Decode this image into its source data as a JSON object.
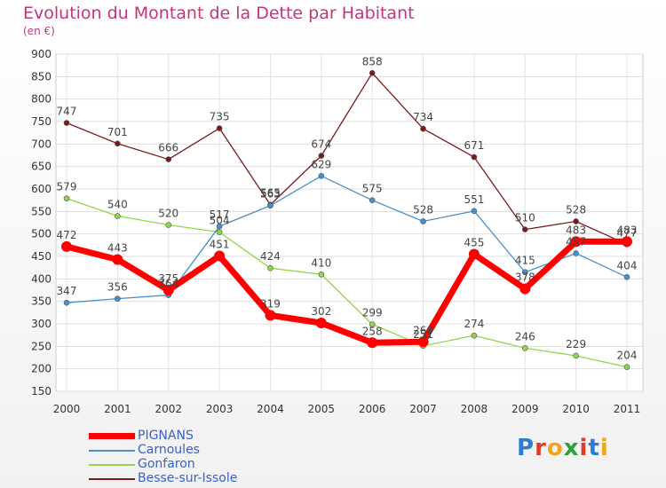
{
  "title": "Evolution du Montant de la Dette par Habitant",
  "unit": "(en €)",
  "logo": {
    "text": "Proxiti",
    "letter_colors": [
      "#2b7dd1",
      "#e03a2a",
      "#f2a51a",
      "#2fa13b",
      "#e03a2a",
      "#2b7dd1",
      "#f2a51a"
    ]
  },
  "chart_data": {
    "type": "line",
    "title": "Evolution du Montant de la Dette par Habitant",
    "ylabel": "(en €)",
    "x": [
      "2000",
      "2001",
      "2002",
      "2003",
      "2004",
      "2005",
      "2006",
      "2007",
      "2008",
      "2009",
      "2010",
      "2011"
    ],
    "ylim": [
      150,
      900
    ],
    "yticks": [
      150,
      200,
      250,
      300,
      350,
      400,
      450,
      500,
      550,
      600,
      650,
      700,
      750,
      800,
      850,
      900
    ],
    "grid": true,
    "legend_position": "bottom-left",
    "series": [
      {
        "name": "PIGNANS",
        "color": "#ff0000",
        "values": [
          472,
          443,
          375,
          451,
          319,
          302,
          258,
          260,
          455,
          378,
          483,
          483
        ]
      },
      {
        "name": "Carnoules",
        "color": "#4a90c8",
        "values": [
          347,
          356,
          364,
          517,
          563,
          629,
          575,
          528,
          551,
          415,
          457,
          404
        ]
      },
      {
        "name": "Gonfaron",
        "color": "#8fd64a",
        "values": [
          579,
          540,
          520,
          504,
          424,
          410,
          299,
          251,
          274,
          246,
          229,
          204
        ]
      },
      {
        "name": "Besse-sur-Issole",
        "color": "#7a1a1a",
        "values": [
          747,
          701,
          666,
          735,
          565,
          674,
          858,
          734,
          671,
          510,
          528,
          477
        ]
      }
    ]
  }
}
